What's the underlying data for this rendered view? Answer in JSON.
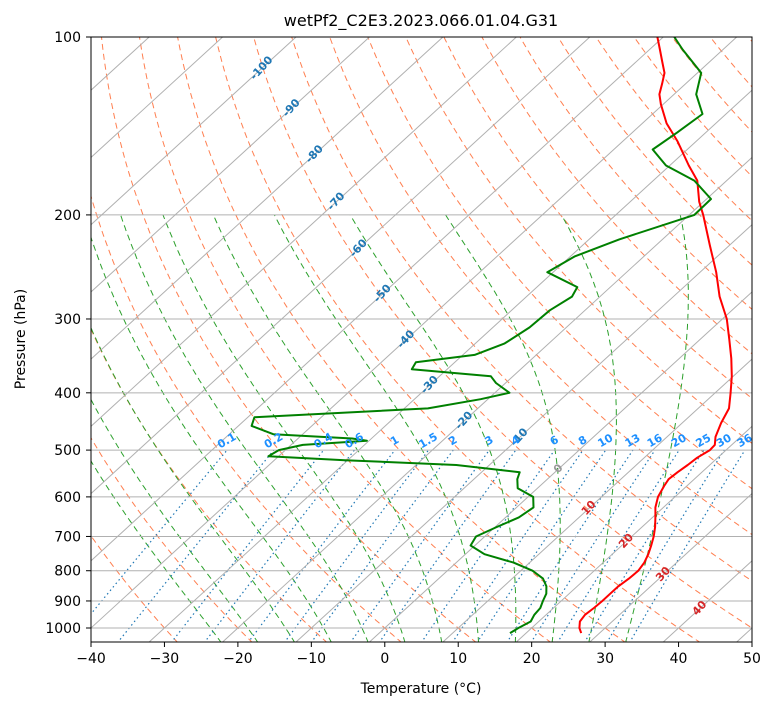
{
  "chart_data": {
    "type": "line",
    "title": "wetPf2_C2E3.2023.066.01.04.G31",
    "xlabel": "Temperature (°C)",
    "ylabel": "Pressure (hPa)",
    "xlim": [
      -40,
      50
    ],
    "ylim": [
      1050,
      100
    ],
    "y_scale": "log",
    "grid": true,
    "x_ticks": [
      -40,
      -30,
      -20,
      -10,
      0,
      10,
      20,
      30,
      40,
      50
    ],
    "y_ticks": [
      100,
      200,
      300,
      400,
      500,
      600,
      700,
      800,
      900,
      1000
    ],
    "skew_isotherms_drawn_from": -140,
    "skew_isotherms_drawn_to": 50,
    "isotherm_step": 10,
    "dry_adiabat_theta_c": [
      -30,
      -20,
      -10,
      0,
      10,
      20,
      30,
      40,
      50,
      60,
      70,
      80,
      90,
      100,
      110,
      120,
      130,
      140,
      150,
      160,
      170,
      180
    ],
    "moist_adiabat_start_c": [
      -20,
      -15,
      -10,
      -5,
      0,
      5,
      10,
      15,
      20,
      25,
      30,
      35
    ],
    "mixing_ratio_g_per_kg": [
      0.1,
      0.2,
      0.4,
      0.6,
      1,
      1.5,
      2,
      3,
      4,
      6,
      8,
      10,
      13,
      16,
      20,
      25,
      30,
      36
    ],
    "mixing_ratio_labels": [
      "0.1",
      "0.2",
      "0.4",
      "0.6",
      "1",
      "1.5",
      "2",
      "3",
      "4",
      "6",
      "8",
      "10",
      "13",
      "16",
      "20",
      "25",
      "30",
      "36"
    ],
    "isotherm_labels_blue": [
      {
        "text": "-100",
        "t": -100,
        "p": 113
      },
      {
        "text": "-90",
        "t": -90,
        "p": 132
      },
      {
        "text": "-80",
        "t": -80,
        "p": 158
      },
      {
        "text": "-70",
        "t": -70,
        "p": 190
      },
      {
        "text": "-60",
        "t": -60,
        "p": 228
      },
      {
        "text": "-50",
        "t": -50,
        "p": 272
      },
      {
        "text": "-40",
        "t": -40,
        "p": 325
      },
      {
        "text": "-30",
        "t": -30,
        "p": 388
      },
      {
        "text": "-20",
        "t": -20,
        "p": 446
      },
      {
        "text": "-10",
        "t": -10,
        "p": 476
      }
    ],
    "isotherm_labels_red": [
      {
        "text": "0",
        "t": 0,
        "p": 538,
        "color": "#999999"
      },
      {
        "text": "10",
        "t": 10,
        "p": 627,
        "color": "#d62728"
      },
      {
        "text": "20",
        "t": 20,
        "p": 713,
        "color": "#d62728"
      },
      {
        "text": "30",
        "t": 30,
        "p": 812,
        "color": "#d62728"
      },
      {
        "text": "40",
        "t": 40,
        "p": 927,
        "color": "#d62728"
      }
    ],
    "series": [
      {
        "name": "",
        "color": "#ff0000",
        "points": [
          {
            "p": 1020,
            "t": 27.5
          },
          {
            "p": 1000,
            "t": 26.5
          },
          {
            "p": 975,
            "t": 25.6
          },
          {
            "p": 950,
            "t": 25.3
          },
          {
            "p": 925,
            "t": 25.5
          },
          {
            "p": 900,
            "t": 25.6
          },
          {
            "p": 875,
            "t": 25.6
          },
          {
            "p": 850,
            "t": 25.6
          },
          {
            "p": 825,
            "t": 25.9
          },
          {
            "p": 800,
            "t": 26.0
          },
          {
            "p": 775,
            "t": 25.6
          },
          {
            "p": 750,
            "t": 24.9
          },
          {
            "p": 725,
            "t": 24.0
          },
          {
            "p": 700,
            "t": 23.0
          },
          {
            "p": 675,
            "t": 21.8
          },
          {
            "p": 650,
            "t": 20.4
          },
          {
            "p": 625,
            "t": 18.9
          },
          {
            "p": 600,
            "t": 17.7
          },
          {
            "p": 575,
            "t": 16.9
          },
          {
            "p": 560,
            "t": 16.5
          },
          {
            "p": 545,
            "t": 16.7
          },
          {
            "p": 530,
            "t": 17.0
          },
          {
            "p": 515,
            "t": 17.2
          },
          {
            "p": 500,
            "t": 17.8
          },
          {
            "p": 490,
            "t": 17.7
          },
          {
            "p": 475,
            "t": 16.6
          },
          {
            "p": 450,
            "t": 15.3
          },
          {
            "p": 425,
            "t": 14.2
          },
          {
            "p": 400,
            "t": 12.1
          },
          {
            "p": 375,
            "t": 9.8
          },
          {
            "p": 350,
            "t": 7.1
          },
          {
            "p": 325,
            "t": 4.0
          },
          {
            "p": 300,
            "t": 0.6
          },
          {
            "p": 275,
            "t": -3.7
          },
          {
            "p": 250,
            "t": -7.8
          },
          {
            "p": 225,
            "t": -12.7
          },
          {
            "p": 200,
            "t": -18.1
          },
          {
            "p": 190,
            "t": -20.6
          },
          {
            "p": 175,
            "t": -24.0
          },
          {
            "p": 165,
            "t": -27.4
          },
          {
            "p": 150,
            "t": -32.6
          },
          {
            "p": 140,
            "t": -36.7
          },
          {
            "p": 130,
            "t": -40.3
          },
          {
            "p": 125,
            "t": -42.0
          },
          {
            "p": 120,
            "t": -43.2
          },
          {
            "p": 115,
            "t": -44.5
          },
          {
            "p": 110,
            "t": -46.5
          },
          {
            "p": 105,
            "t": -48.6
          },
          {
            "p": 100,
            "t": -50.8
          }
        ]
      },
      {
        "name": "",
        "color": "#008000",
        "points": [
          {
            "p": 1020,
            "t": 17.8
          },
          {
            "p": 1000,
            "t": 18.2
          },
          {
            "p": 975,
            "t": 18.9
          },
          {
            "p": 950,
            "t": 18.4
          },
          {
            "p": 925,
            "t": 18.2
          },
          {
            "p": 900,
            "t": 17.5
          },
          {
            "p": 875,
            "t": 16.9
          },
          {
            "p": 850,
            "t": 15.8
          },
          {
            "p": 825,
            "t": 14.2
          },
          {
            "p": 800,
            "t": 11.6
          },
          {
            "p": 775,
            "t": 7.8
          },
          {
            "p": 750,
            "t": 2.6
          },
          {
            "p": 725,
            "t": -0.6
          },
          {
            "p": 700,
            "t": -1.2
          },
          {
            "p": 675,
            "t": 0.2
          },
          {
            "p": 650,
            "t": 1.8
          },
          {
            "p": 625,
            "t": 2.3
          },
          {
            "p": 600,
            "t": 0.7
          },
          {
            "p": 580,
            "t": -2.7
          },
          {
            "p": 560,
            "t": -4.1
          },
          {
            "p": 545,
            "t": -4.8
          },
          {
            "p": 530,
            "t": -14.5
          },
          {
            "p": 520,
            "t": -30.4
          },
          {
            "p": 512,
            "t": -41.4
          },
          {
            "p": 500,
            "t": -40.9
          },
          {
            "p": 490,
            "t": -38.4
          },
          {
            "p": 482,
            "t": -30.3
          },
          {
            "p": 478,
            "t": -32.6
          },
          {
            "p": 470,
            "t": -44.0
          },
          {
            "p": 455,
            "t": -48.2
          },
          {
            "p": 440,
            "t": -49.1
          },
          {
            "p": 425,
            "t": -26.8
          },
          {
            "p": 410,
            "t": -21.0
          },
          {
            "p": 400,
            "t": -18.0
          },
          {
            "p": 385,
            "t": -21.3
          },
          {
            "p": 375,
            "t": -23.0
          },
          {
            "p": 365,
            "t": -34.8
          },
          {
            "p": 355,
            "t": -35.3
          },
          {
            "p": 345,
            "t": -28.4
          },
          {
            "p": 330,
            "t": -26.0
          },
          {
            "p": 310,
            "t": -25.0
          },
          {
            "p": 290,
            "t": -24.8
          },
          {
            "p": 275,
            "t": -23.8
          },
          {
            "p": 265,
            "t": -24.5
          },
          {
            "p": 250,
            "t": -30.8
          },
          {
            "p": 235,
            "t": -29.4
          },
          {
            "p": 220,
            "t": -25.9
          },
          {
            "p": 200,
            "t": -19.3
          },
          {
            "p": 188,
            "t": -19.4
          },
          {
            "p": 175,
            "t": -24.4
          },
          {
            "p": 165,
            "t": -30.5
          },
          {
            "p": 155,
            "t": -34.7
          },
          {
            "p": 145,
            "t": -33.9
          },
          {
            "p": 135,
            "t": -33.2
          },
          {
            "p": 125,
            "t": -37.0
          },
          {
            "p": 115,
            "t": -39.5
          },
          {
            "p": 105,
            "t": -45.5
          },
          {
            "p": 100,
            "t": -48.5
          }
        ]
      }
    ]
  }
}
